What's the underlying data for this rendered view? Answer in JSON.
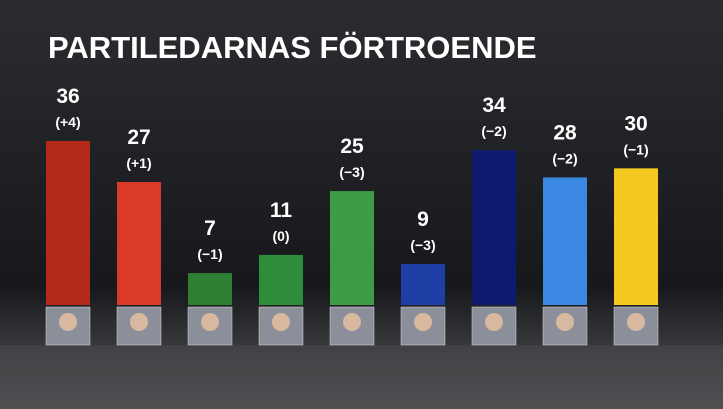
{
  "chart_data": {
    "type": "bar",
    "title": "PARTILEDARNAS FÖRTROENDE",
    "categories": [
      null,
      null,
      null,
      null,
      null,
      null,
      null,
      null,
      null
    ],
    "values": [
      36,
      27,
      7,
      11,
      25,
      9,
      34,
      28,
      30
    ],
    "change_labels": [
      "(+4)",
      "(+1)",
      "(−1)",
      "(0)",
      "(−3)",
      "(−3)",
      "(−2)",
      "(−2)",
      "(−1)"
    ],
    "colors": [
      "#b3291a",
      "#da3a28",
      "#2f7f33",
      "#2f8c3b",
      "#3c9c48",
      "#1f3fa6",
      "#0e1a6e",
      "#3a88e2",
      "#f3c91f"
    ]
  }
}
